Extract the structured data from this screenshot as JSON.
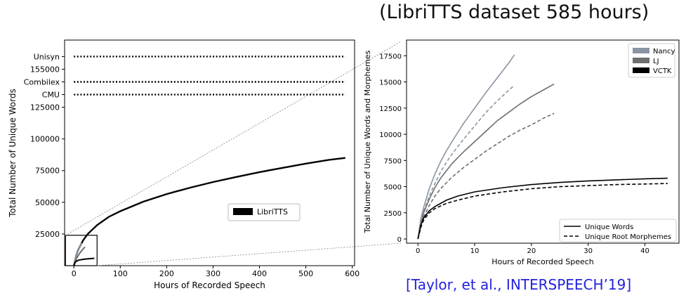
{
  "heading": "(LibriTTS dataset 585 hours)",
  "citation": "[Taylor, et al., INTERSPEECH’19]",
  "chart_data": [
    {
      "type": "line",
      "xlabel": "Hours of Recorded Speech",
      "ylabel": "Total Number of Unique Words",
      "xlim": [
        -20,
        605
      ],
      "ylim": [
        0,
        178000
      ],
      "xticks": [
        0,
        100,
        200,
        300,
        400,
        500,
        600
      ],
      "yticks": [
        25000,
        50000,
        75000,
        100000,
        125000,
        155000
      ],
      "ytick_labels": [
        "25000",
        "50000",
        "75000",
        "100000",
        "125000",
        "155000"
      ],
      "grid": false,
      "legend": {
        "position": "center-right",
        "entries": [
          "LibriTTS"
        ]
      },
      "reference_lines": [
        {
          "label": "Unisyn",
          "y": 165000,
          "x_range": [
            0,
            585
          ]
        },
        {
          "label": "Combilex",
          "y": 145000,
          "x_range": [
            0,
            585
          ]
        },
        {
          "label": "CMU",
          "y": 135000,
          "x_range": [
            0,
            585
          ]
        }
      ],
      "series": [
        {
          "name": "LibriTTS",
          "color": "#000000",
          "x": [
            0,
            5,
            10,
            20,
            30,
            50,
            75,
            100,
            150,
            200,
            250,
            300,
            350,
            400,
            450,
            500,
            550,
            585
          ],
          "y": [
            0,
            8000,
            13000,
            20000,
            25000,
            32000,
            38500,
            43000,
            50500,
            56500,
            61500,
            66000,
            70000,
            73800,
            77200,
            80500,
            83500,
            85000
          ]
        },
        {
          "color": "#8a95a3",
          "x": [
            0,
            2,
            5,
            10,
            15,
            17
          ],
          "y": [
            0,
            4000,
            8000,
            12800,
            16500,
            17800
          ]
        },
        {
          "color": "#6e6e6e",
          "x": [
            0,
            3,
            6,
            12,
            18,
            24
          ],
          "y": [
            0,
            3500,
            6000,
            9500,
            12500,
            14800
          ]
        },
        {
          "color": "#000000",
          "x": [
            0,
            3,
            6,
            10,
            20,
            30,
            44
          ],
          "y": [
            0,
            2800,
            3600,
            4300,
            5000,
            5400,
            5800
          ]
        }
      ],
      "inset_box": {
        "x_range": [
          -18,
          50
        ],
        "y_range": [
          0,
          24000
        ]
      }
    },
    {
      "type": "line",
      "xlabel": "Hours of Recorded Speech",
      "ylabel": "Total Number of Unique Words and Morphemes",
      "xlim": [
        -2,
        46
      ],
      "ylim": [
        -400,
        19000
      ],
      "xticks": [
        0,
        10,
        20,
        30,
        40
      ],
      "yticks": [
        0,
        2500,
        5000,
        7500,
        10000,
        12500,
        15000,
        17500
      ],
      "grid": false,
      "legends": [
        {
          "position": "upper-right",
          "entries": [
            {
              "label": "Nancy",
              "color": "#8a95a3"
            },
            {
              "label": "LJ",
              "color": "#6e6e6e"
            },
            {
              "label": "VCTK",
              "color": "#000000"
            }
          ]
        },
        {
          "position": "lower-right",
          "entries": [
            {
              "label": "Unique Words",
              "style": "solid"
            },
            {
              "label": "Unique Root Morphemes",
              "style": "dashed"
            }
          ]
        }
      ],
      "series": [
        {
          "name": "Nancy",
          "kind": "Unique Words",
          "color": "#8a95a3",
          "dashed": false,
          "x": [
            0,
            0.5,
            1,
            2,
            3,
            4,
            5,
            6,
            8,
            10,
            12,
            14,
            16,
            17
          ],
          "y": [
            0,
            1900,
            3000,
            4800,
            6200,
            7400,
            8400,
            9300,
            11000,
            12500,
            14000,
            15400,
            16800,
            17600
          ]
        },
        {
          "name": "Nancy",
          "kind": "Unique Root Morphemes",
          "color": "#8a95a3",
          "dashed": true,
          "x": [
            0,
            0.5,
            1,
            2,
            3,
            4,
            5,
            6,
            8,
            10,
            12,
            14,
            16,
            17
          ],
          "y": [
            0,
            1600,
            2600,
            4100,
            5300,
            6400,
            7300,
            8100,
            9500,
            10800,
            12100,
            13200,
            14200,
            14700
          ]
        },
        {
          "name": "LJ",
          "kind": "Unique Words",
          "color": "#6e6e6e",
          "dashed": false,
          "x": [
            0,
            1,
            2,
            3,
            4,
            6,
            8,
            10,
            12,
            14,
            16,
            18,
            20,
            22,
            24
          ],
          "y": [
            0,
            2500,
            3800,
            4900,
            5800,
            7200,
            8300,
            9300,
            10300,
            11300,
            12100,
            12900,
            13600,
            14200,
            14800
          ]
        },
        {
          "name": "LJ",
          "kind": "Unique Root Morphemes",
          "color": "#6e6e6e",
          "dashed": true,
          "x": [
            0,
            1,
            2,
            3,
            4,
            6,
            8,
            10,
            12,
            14,
            16,
            18,
            20,
            22,
            24
          ],
          "y": [
            0,
            2100,
            3200,
            4100,
            4800,
            5900,
            6800,
            7600,
            8400,
            9100,
            9800,
            10400,
            10900,
            11500,
            12000
          ]
        },
        {
          "name": "VCTK",
          "kind": "Unique Words",
          "color": "#000000",
          "dashed": false,
          "x": [
            0,
            0.5,
            1,
            2,
            3,
            5,
            7,
            10,
            15,
            20,
            25,
            30,
            35,
            40,
            44
          ],
          "y": [
            0,
            1300,
            2000,
            2700,
            3100,
            3700,
            4100,
            4500,
            4900,
            5200,
            5400,
            5550,
            5650,
            5750,
            5800
          ]
        },
        {
          "name": "VCTK",
          "kind": "Unique Root Morphemes",
          "color": "#000000",
          "dashed": true,
          "x": [
            0,
            0.5,
            1,
            2,
            3,
            5,
            7,
            10,
            15,
            20,
            25,
            30,
            35,
            40,
            44
          ],
          "y": [
            0,
            1100,
            1800,
            2500,
            2900,
            3400,
            3700,
            4100,
            4500,
            4800,
            5000,
            5100,
            5200,
            5250,
            5300
          ]
        }
      ]
    }
  ]
}
